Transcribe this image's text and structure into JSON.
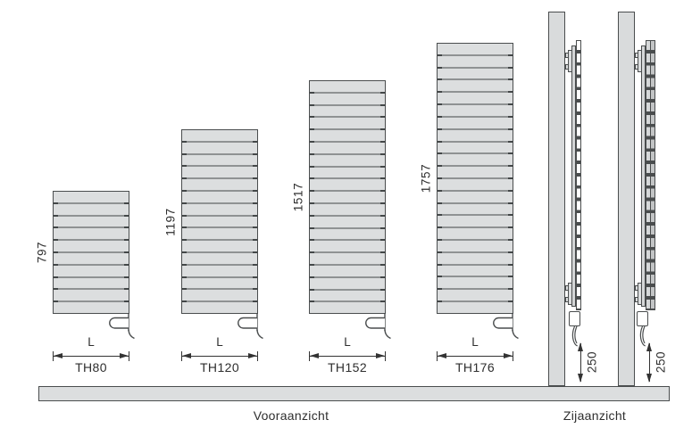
{
  "figure": {
    "front_caption": "Vooraanzicht",
    "side_caption": "Zijaanzicht",
    "width_label": "L",
    "floor_clearance_mm": "250"
  },
  "radiators": [
    {
      "model": "TH80",
      "height_mm": "797",
      "slats": 10
    },
    {
      "model": "TH120",
      "height_mm": "1197",
      "slats": 15
    },
    {
      "model": "TH152",
      "height_mm": "1517",
      "slats": 19
    },
    {
      "model": "TH176",
      "height_mm": "1757",
      "slats": 22
    }
  ],
  "side_views": [
    {
      "panel_layers": 1
    },
    {
      "panel_layers": 2
    }
  ],
  "colors": {
    "panel_fill": "#dcdedf",
    "divider": "#8f9293",
    "outline": "#4a4d4e",
    "text": "#2e2e2e"
  }
}
